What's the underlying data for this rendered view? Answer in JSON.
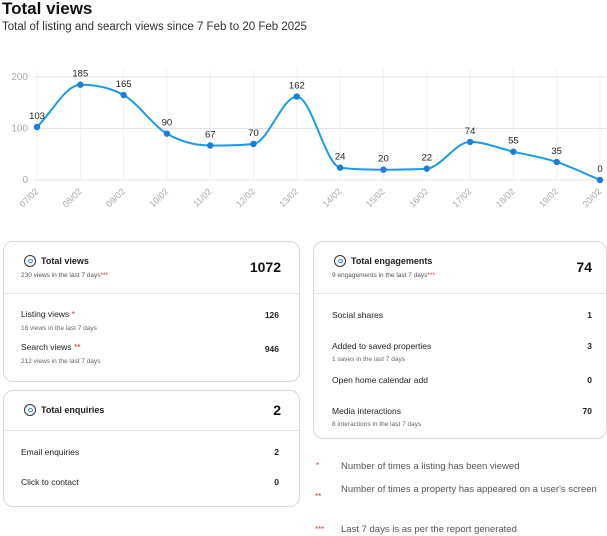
{
  "header": {
    "title": "Total views",
    "subtitle": "Total of listing and search views since 7 Feb to 20 Feb 2025"
  },
  "chart_data": {
    "type": "line",
    "title": "",
    "xlabel": "",
    "ylabel": "",
    "categories": [
      "07/02",
      "08/02",
      "09/02",
      "10/02",
      "11/02",
      "12/02",
      "13/02",
      "14/02",
      "15/02",
      "16/02",
      "17/02",
      "18/02",
      "19/02",
      "20/02"
    ],
    "series": [
      {
        "values": [
          103,
          185,
          165,
          90,
          67,
          70,
          162,
          24,
          20,
          22,
          74,
          55,
          35,
          0
        ]
      }
    ],
    "y_ticks": [
      "0",
      "100",
      "200"
    ],
    "ylim": [
      0,
      215
    ],
    "grid": true,
    "line_color": "#1a9bea",
    "point_color": "#1a7fd9",
    "data_labels": true
  },
  "views_card": {
    "title": "Total views",
    "sub_text": "230 views in the last 7 days",
    "sub_stars": "***",
    "total": "1072",
    "icon": "eye-icon",
    "rows": [
      {
        "label": "Listing views",
        "stars": "*",
        "sub": "18 views in the last 7 days",
        "value": "126"
      },
      {
        "label": "Search views",
        "stars": "**",
        "sub": "212 views in the last 7 days",
        "value": "946"
      }
    ]
  },
  "enquiries_card": {
    "title": "Total enquiries",
    "total": "2",
    "icon": "chat-bubble-icon",
    "rows": [
      {
        "label": "Email enquiries",
        "value": "2"
      },
      {
        "label": "Click to contact",
        "value": "0"
      }
    ]
  },
  "engagements_card": {
    "title": "Total engagements",
    "sub_text": "9 engagements in the last 7 days",
    "sub_stars": "***",
    "total": "74",
    "icon": "engagement-icon",
    "rows": [
      {
        "label": "Social shares",
        "sub": "",
        "value": "1"
      },
      {
        "label": "Added to saved properties",
        "sub": "1 saves in the last 7 days",
        "value": "3"
      },
      {
        "label": "Open home calendar add",
        "sub": "",
        "value": "0"
      },
      {
        "label": "Media interactions",
        "sub": "8 interactions in the last 7 days",
        "value": "70"
      }
    ]
  },
  "footnotes": [
    {
      "stars": "*",
      "text": "Number of times a listing has been viewed"
    },
    {
      "stars": "**",
      "text": "Number of times a property has appeared on a user's screen"
    },
    {
      "stars": "***",
      "text": "Last 7 days is as per the report generated"
    }
  ],
  "colors": {
    "accent": "#1a9bea",
    "stars": "#e0322f"
  }
}
